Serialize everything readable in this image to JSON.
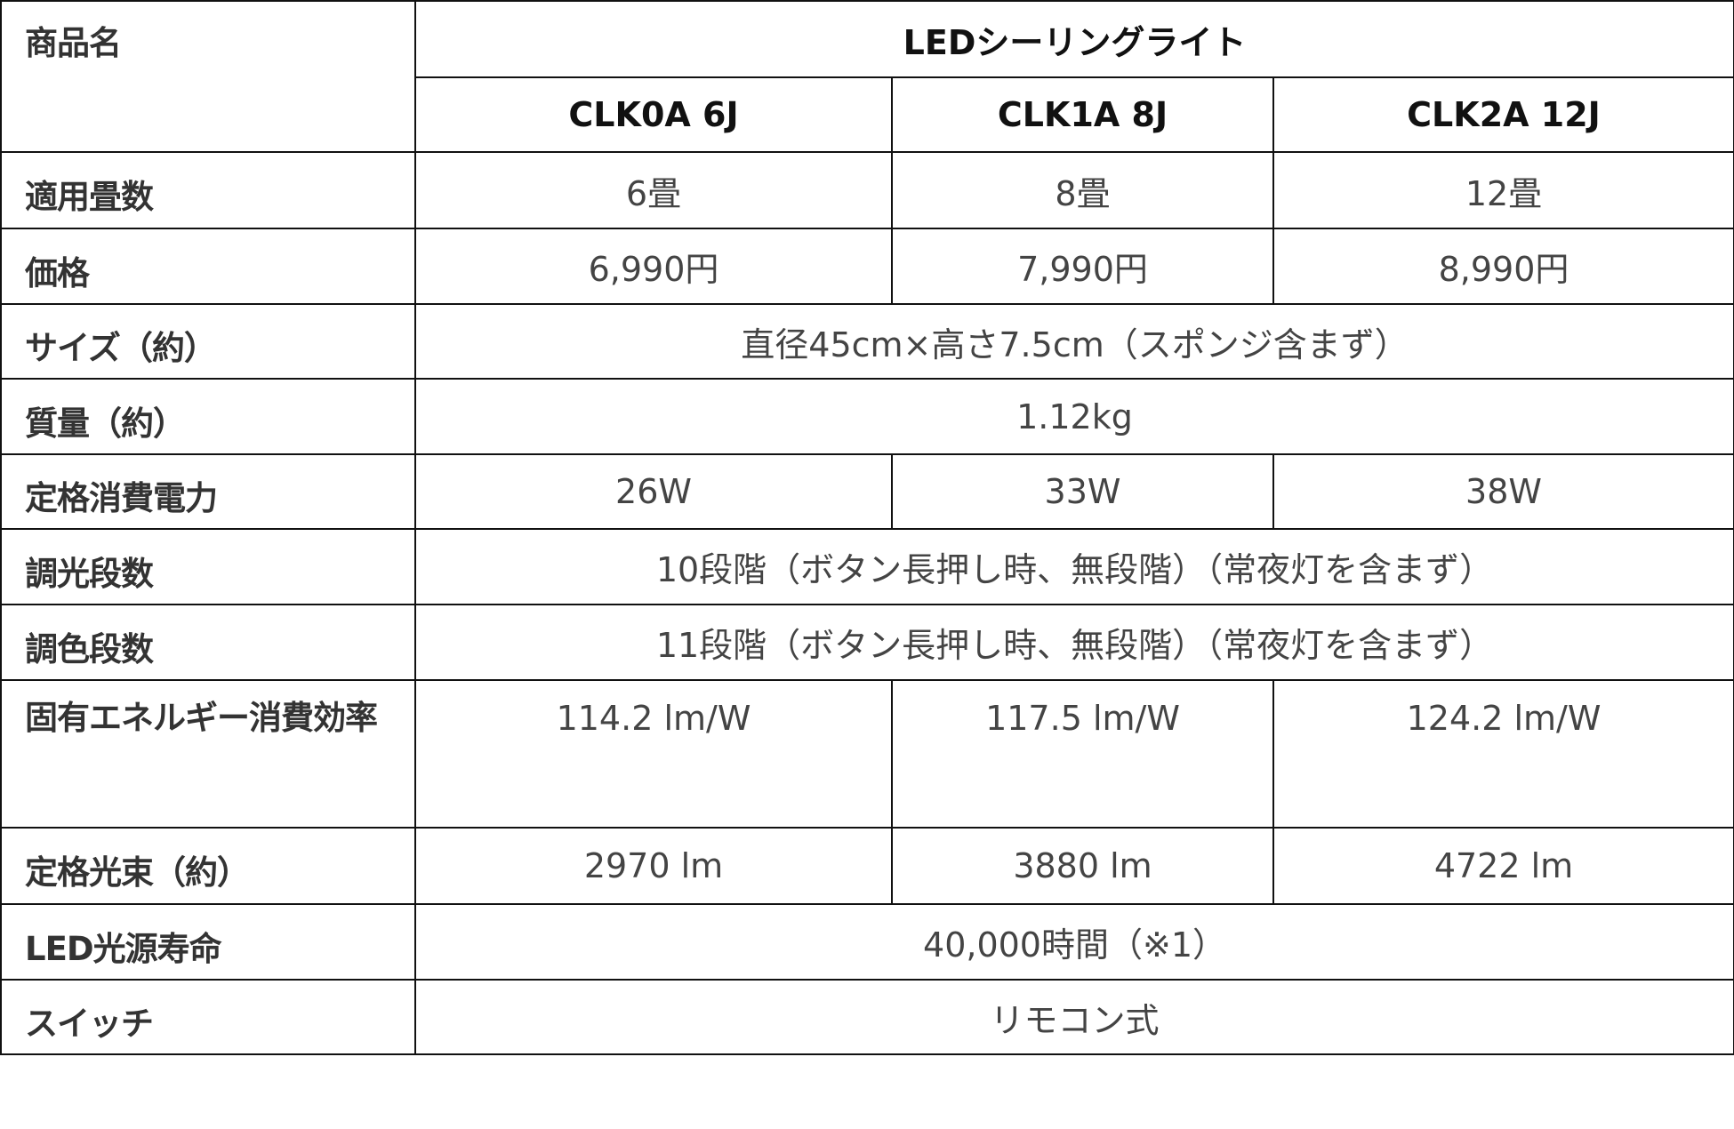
{
  "header": {
    "product_name_label": "商品名",
    "series": "LEDシーリングライト",
    "models": [
      "CLK0A 6J",
      "CLK1A 8J",
      "CLK2A 12J"
    ]
  },
  "rows": {
    "tatami": {
      "label": "適用畳数",
      "values": [
        "6畳",
        "8畳",
        "12畳"
      ]
    },
    "price": {
      "label": "価格",
      "values": [
        "6,990円",
        "7,990円",
        "8,990円"
      ]
    },
    "size": {
      "label": "サイズ（約）",
      "value": "直径45cm×高さ7.5cm（スポンジ含まず）"
    },
    "weight": {
      "label": "質量（約）",
      "value": "1.12kg"
    },
    "power": {
      "label": "定格消費電力",
      "values": [
        "26W",
        "33W",
        "38W"
      ]
    },
    "dimming": {
      "label": "調光段数",
      "value": "10段階（ボタン長押し時、無段階）（常夜灯を含まず）"
    },
    "color": {
      "label": "調色段数",
      "value": "11段階（ボタン長押し時、無段階）（常夜灯を含まず）"
    },
    "efficiency": {
      "label": "固有エネルギー消費効率",
      "values": [
        "114.2 lm/W",
        "117.5 lm/W",
        "124.2 lm/W"
      ]
    },
    "flux": {
      "label": "定格光束（約）",
      "values": [
        "2970 lm",
        "3880 lm",
        "4722 lm"
      ]
    },
    "life": {
      "label": "LED光源寿命",
      "value": "40,000時間（※1）"
    },
    "switch": {
      "label": "スイッチ",
      "value": "リモコン式"
    }
  }
}
